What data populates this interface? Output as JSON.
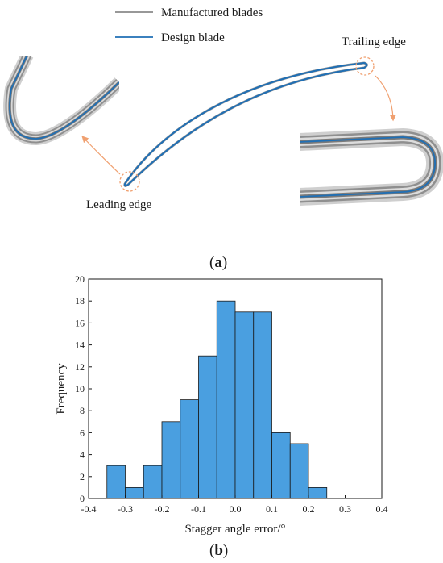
{
  "panel_a": {
    "label_open": "(",
    "label_letter": "a",
    "label_close": ")",
    "legend": [
      {
        "text": "Manufactured blades",
        "color": "#5a5a5a"
      },
      {
        "text": "Design blade",
        "color": "#1f6fb5"
      }
    ],
    "annotations": {
      "trailing_edge": "Trailing edge",
      "leading_edge": "Leading edge"
    },
    "colors": {
      "design": "#1f6fb5",
      "manufactured": "#8a8a8a",
      "callout": "#f0a070"
    }
  },
  "panel_b": {
    "label_open": "(",
    "label_letter": "b",
    "label_close": ")"
  },
  "chart_data": {
    "type": "bar",
    "xlabel": "Stagger angle error/°",
    "ylabel": "Frequency",
    "xlim": [
      -0.4,
      0.4
    ],
    "ylim": [
      0,
      20
    ],
    "xticks": [
      "-0.4",
      "-0.3",
      "-0.2",
      "-0.1",
      "0.0",
      "0.1",
      "0.2",
      "0.3",
      "0.4"
    ],
    "yticks": [
      "0",
      "2",
      "4",
      "6",
      "8",
      "10",
      "12",
      "14",
      "16",
      "18",
      "20"
    ],
    "bin_edges": [
      -0.35,
      -0.3,
      -0.25,
      -0.2,
      -0.15,
      -0.1,
      -0.05,
      0.0,
      0.05,
      0.1,
      0.15,
      0.2,
      0.25,
      0.3,
      0.35
    ],
    "values": [
      3,
      1,
      3,
      7,
      9,
      13,
      18,
      17,
      17,
      6,
      5,
      1,
      0,
      0
    ],
    "bar_color": "#4a9fe0",
    "grid": false
  }
}
